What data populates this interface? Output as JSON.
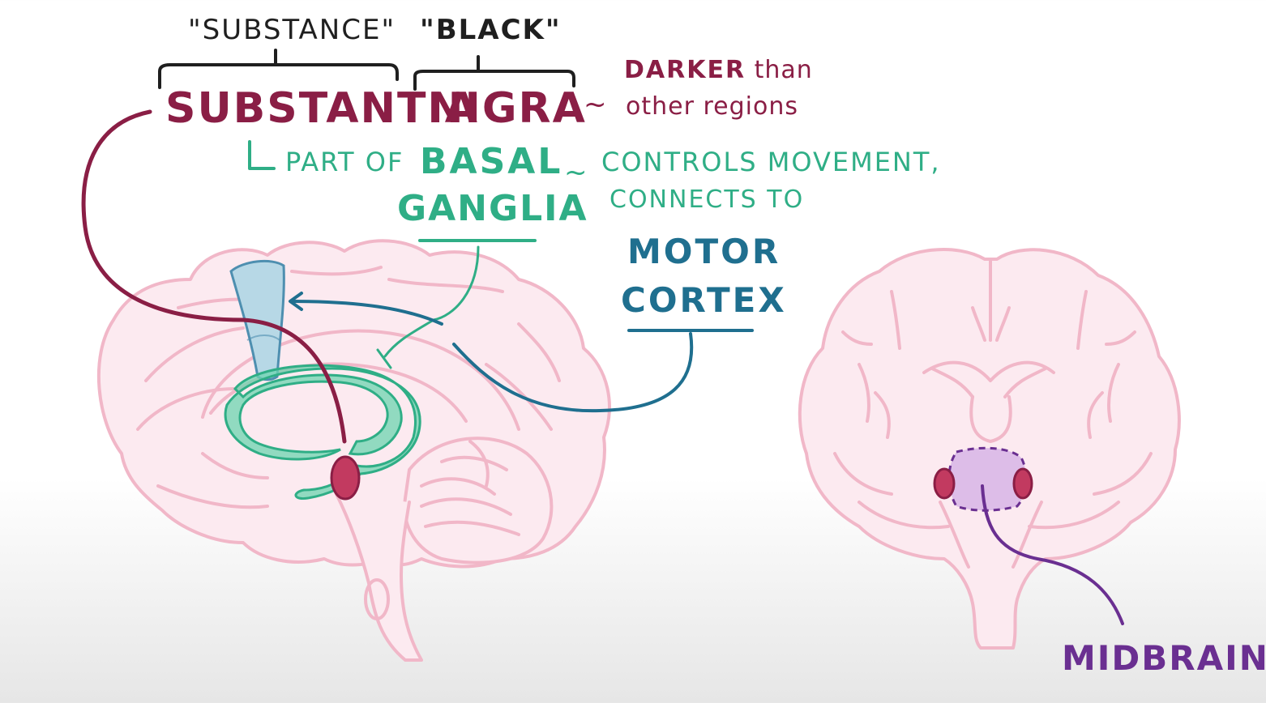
{
  "title": {
    "substance_quote": "\"SUBSTANCE\"",
    "black_quote": "\"BLACK\"",
    "substantia": "SUBSTANTIA",
    "nigra": "NIGRA",
    "tilde": "~",
    "darker": "DARKER",
    "than": "than",
    "other_regions": "other regions"
  },
  "basal": {
    "part_of": "PART OF",
    "basal": "BASAL",
    "ganglia": "GANGLIA",
    "controls_movement": "CONTROLS MOVEMENT,",
    "connects_to": "CONNECTS TO"
  },
  "motor": {
    "line1": "MOTOR",
    "line2": "CORTEX"
  },
  "midbrain": "MIDBRAIN",
  "colors": {
    "maroon": "#8a1e45",
    "green": "#2fae86",
    "teal": "#1f6f8f",
    "purple": "#6a2f91",
    "pink_outline": "#f1b7c8"
  }
}
